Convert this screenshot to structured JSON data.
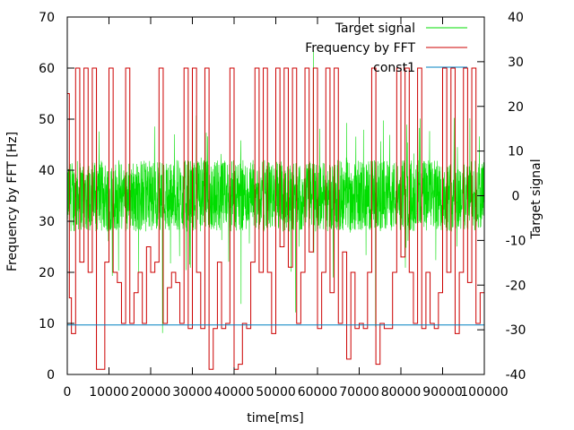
{
  "chart_data": {
    "type": "line",
    "xlabel": "time[ms]",
    "ylabel": "Frequency by FFT [Hz]",
    "y2label": "Target signal",
    "xlim": [
      0,
      100000
    ],
    "ylim": [
      0,
      70
    ],
    "y2lim": [
      -40,
      40
    ],
    "x_ticks": [
      "0",
      "10000",
      "20000",
      "30000",
      "40000",
      "50000",
      "60000",
      "70000",
      "80000",
      "90000",
      "100000"
    ],
    "y_ticks": [
      "0",
      "10",
      "20",
      "30",
      "40",
      "50",
      "60",
      "70"
    ],
    "y2_ticks": [
      "-40",
      "-30",
      "-20",
      "-10",
      "0",
      "10",
      "20",
      "30",
      "40"
    ],
    "grid": false,
    "legend_position": "top-right",
    "series": [
      {
        "name": "Target signal",
        "axis": "y2",
        "color": "#00dd00",
        "style": "dense-noise",
        "center": 0,
        "typical_amplitude": 8,
        "peak_range": [
          -32,
          34
        ]
      },
      {
        "name": "Frequency by FFT",
        "axis": "y",
        "color": "#cc0000",
        "style": "step",
        "x": [
          0,
          500,
          1000,
          2000,
          3000,
          4000,
          5000,
          6000,
          7000,
          8000,
          9000,
          10000,
          11000,
          12000,
          13000,
          14000,
          15000,
          16000,
          17000,
          18000,
          19000,
          20000,
          21000,
          22000,
          23000,
          24000,
          25000,
          26000,
          27000,
          28000,
          29000,
          30000,
          31000,
          32000,
          33000,
          34000,
          35000,
          36000,
          37000,
          38000,
          39000,
          40000,
          41000,
          42000,
          43000,
          44000,
          45000,
          46000,
          47000,
          48000,
          49000,
          50000,
          51000,
          52000,
          53000,
          54000,
          55000,
          56000,
          57000,
          58000,
          59000,
          60000,
          61000,
          62000,
          63000,
          64000,
          65000,
          66000,
          67000,
          68000,
          69000,
          70000,
          71000,
          72000,
          73000,
          74000,
          75000,
          76000,
          77000,
          78000,
          79000,
          80000,
          81000,
          82000,
          83000,
          84000,
          85000,
          86000,
          87000,
          88000,
          89000,
          90000,
          91000,
          92000,
          93000,
          94000,
          95000,
          96000,
          97000,
          98000,
          99000,
          100000
        ],
        "values": [
          55,
          15,
          8,
          60,
          22,
          60,
          20,
          60,
          1,
          1,
          22,
          60,
          20,
          18,
          10,
          60,
          10,
          16,
          20,
          10,
          25,
          20,
          22,
          60,
          10,
          17,
          20,
          18,
          10,
          60,
          9,
          60,
          20,
          9,
          60,
          1,
          9,
          22,
          9,
          10,
          60,
          1,
          2,
          10,
          9,
          22,
          60,
          20,
          60,
          20,
          8,
          60,
          25,
          60,
          21,
          60,
          10,
          20,
          60,
          24,
          60,
          9,
          20,
          60,
          16,
          60,
          10,
          24,
          3,
          20,
          9,
          10,
          9,
          20,
          60,
          2,
          10,
          9,
          9,
          20,
          60,
          23,
          60,
          20,
          10,
          60,
          9,
          20,
          10,
          9,
          16,
          60,
          20,
          60,
          8,
          20,
          60,
          18,
          60,
          10,
          16,
          18
        ]
      },
      {
        "name": "const1",
        "axis": "y",
        "color": "#0080c0",
        "style": "constant",
        "value": 9.7
      }
    ]
  }
}
